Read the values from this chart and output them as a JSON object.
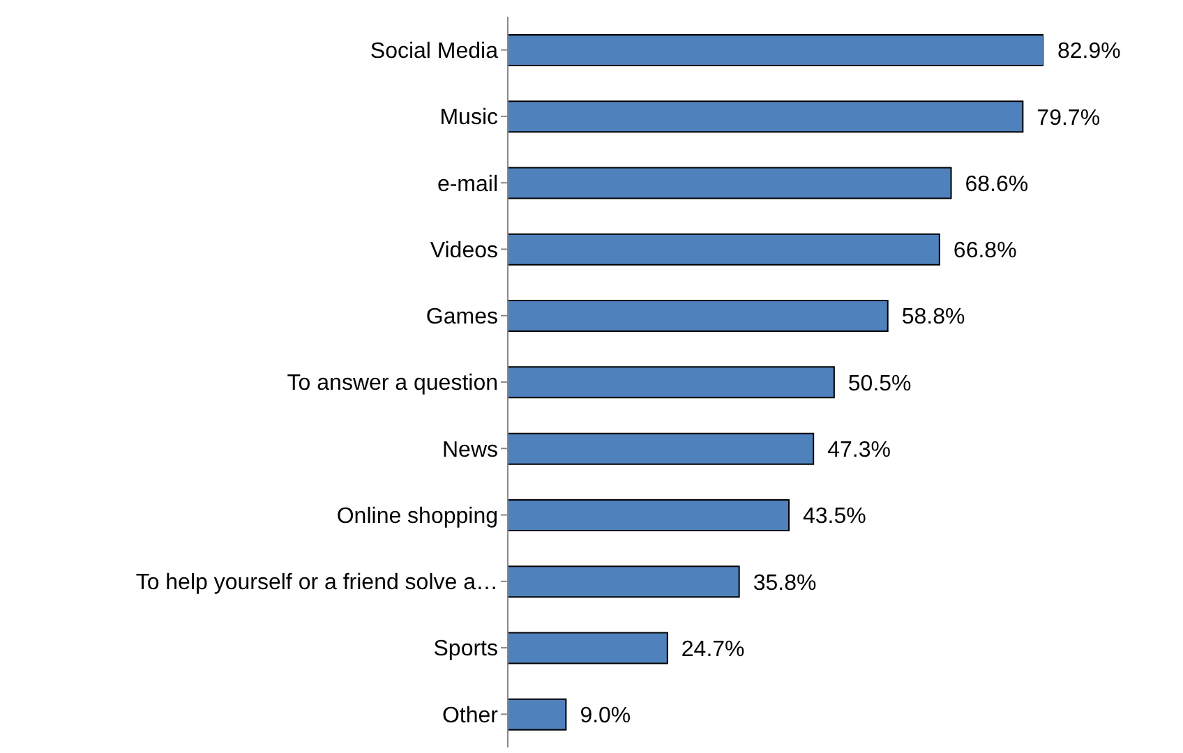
{
  "chart_data": {
    "type": "bar",
    "orientation": "horizontal",
    "categories": [
      "Social Media",
      "Music",
      "e-mail",
      "Videos",
      "Games",
      "To answer a question",
      "News",
      "Online shopping",
      "To help yourself or a friend solve a…",
      "Sports",
      "Other"
    ],
    "values": [
      82.9,
      79.7,
      68.6,
      66.8,
      58.8,
      50.5,
      47.3,
      43.5,
      35.8,
      24.7,
      9.0
    ],
    "value_labels": [
      "82.9%",
      "79.7%",
      "68.6%",
      "66.8%",
      "58.8%",
      "50.5%",
      "47.3%",
      "43.5%",
      "35.8%",
      "24.7%",
      "9.0%"
    ],
    "color": "#4f81bd"
  }
}
